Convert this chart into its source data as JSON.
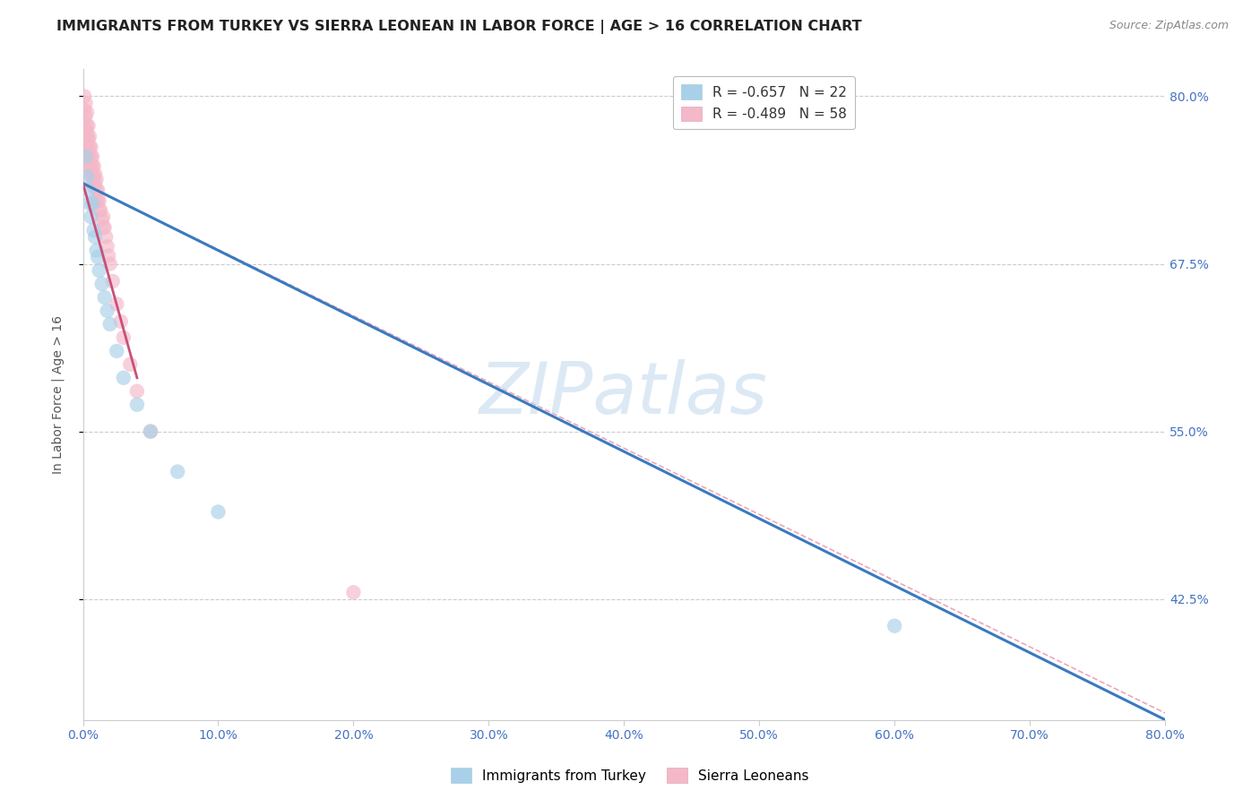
{
  "title": "IMMIGRANTS FROM TURKEY VS SIERRA LEONEAN IN LABOR FORCE | AGE > 16 CORRELATION CHART",
  "source": "Source: ZipAtlas.com",
  "ylabel": "In Labor Force | Age > 16",
  "watermark": "ZIPatlas",
  "xlim": [
    0.0,
    0.8
  ],
  "ylim": [
    0.335,
    0.82
  ],
  "yticks": [
    0.425,
    0.55,
    0.675,
    0.8
  ],
  "ytick_labels": [
    "42.5%",
    "55.0%",
    "67.5%",
    "80.0%"
  ],
  "xticks": [
    0.0,
    0.1,
    0.2,
    0.3,
    0.4,
    0.5,
    0.6,
    0.7,
    0.8
  ],
  "xtick_labels": [
    "0.0%",
    "10.0%",
    "20.0%",
    "30.0%",
    "40.0%",
    "50.0%",
    "60.0%",
    "70.0%",
    "80.0%"
  ],
  "legend_entries": [
    {
      "label": "R = -0.657   N = 22",
      "color": "#a8d0e8"
    },
    {
      "label": "R = -0.489   N = 58",
      "color": "#f4b8c8"
    }
  ],
  "blue_scatter": {
    "x": [
      0.002,
      0.003,
      0.004,
      0.005,
      0.006,
      0.007,
      0.008,
      0.009,
      0.01,
      0.011,
      0.012,
      0.014,
      0.016,
      0.018,
      0.02,
      0.025,
      0.03,
      0.04,
      0.05,
      0.07,
      0.1,
      0.6
    ],
    "y": [
      0.755,
      0.74,
      0.73,
      0.72,
      0.71,
      0.72,
      0.7,
      0.695,
      0.685,
      0.68,
      0.67,
      0.66,
      0.65,
      0.64,
      0.63,
      0.61,
      0.59,
      0.57,
      0.55,
      0.52,
      0.49,
      0.405
    ],
    "color": "#a8d0e8",
    "edgecolor": "#7ab0d0"
  },
  "pink_scatter": {
    "x": [
      0.001,
      0.001,
      0.001,
      0.002,
      0.002,
      0.002,
      0.002,
      0.003,
      0.003,
      0.003,
      0.003,
      0.003,
      0.004,
      0.004,
      0.004,
      0.004,
      0.005,
      0.005,
      0.005,
      0.005,
      0.005,
      0.006,
      0.006,
      0.006,
      0.006,
      0.007,
      0.007,
      0.007,
      0.007,
      0.008,
      0.008,
      0.008,
      0.009,
      0.009,
      0.01,
      0.01,
      0.01,
      0.011,
      0.011,
      0.012,
      0.012,
      0.013,
      0.014,
      0.015,
      0.015,
      0.016,
      0.017,
      0.018,
      0.019,
      0.02,
      0.022,
      0.025,
      0.028,
      0.03,
      0.035,
      0.04,
      0.05,
      0.2
    ],
    "y": [
      0.8,
      0.79,
      0.78,
      0.795,
      0.785,
      0.775,
      0.77,
      0.788,
      0.778,
      0.772,
      0.765,
      0.758,
      0.778,
      0.768,
      0.76,
      0.752,
      0.77,
      0.762,
      0.755,
      0.748,
      0.742,
      0.762,
      0.755,
      0.748,
      0.742,
      0.755,
      0.748,
      0.742,
      0.735,
      0.748,
      0.74,
      0.733,
      0.742,
      0.735,
      0.738,
      0.73,
      0.722,
      0.73,
      0.722,
      0.722,
      0.715,
      0.715,
      0.708,
      0.71,
      0.702,
      0.702,
      0.695,
      0.688,
      0.681,
      0.675,
      0.662,
      0.645,
      0.632,
      0.62,
      0.6,
      0.58,
      0.55,
      0.43
    ],
    "color": "#f4b8c8",
    "edgecolor": "#e090a8"
  },
  "blue_line": {
    "x": [
      0.0,
      0.8
    ],
    "y": [
      0.735,
      0.335
    ],
    "color": "#3a7abf",
    "linewidth": 2.2,
    "linestyle": "solid"
  },
  "pink_solid_line": {
    "x": [
      0.0,
      0.04
    ],
    "y": [
      0.735,
      0.59
    ],
    "color": "#c8507a",
    "linewidth": 2.0,
    "linestyle": "solid"
  },
  "pink_dashed_line": {
    "x": [
      0.0,
      0.8
    ],
    "y": [
      0.735,
      0.34
    ],
    "color": "#e890a8",
    "linewidth": 1.2,
    "linestyle": "dashed"
  },
  "background_color": "#ffffff",
  "grid_color": "#cccccc",
  "title_fontsize": 11.5,
  "axis_label_fontsize": 10,
  "tick_fontsize": 10
}
